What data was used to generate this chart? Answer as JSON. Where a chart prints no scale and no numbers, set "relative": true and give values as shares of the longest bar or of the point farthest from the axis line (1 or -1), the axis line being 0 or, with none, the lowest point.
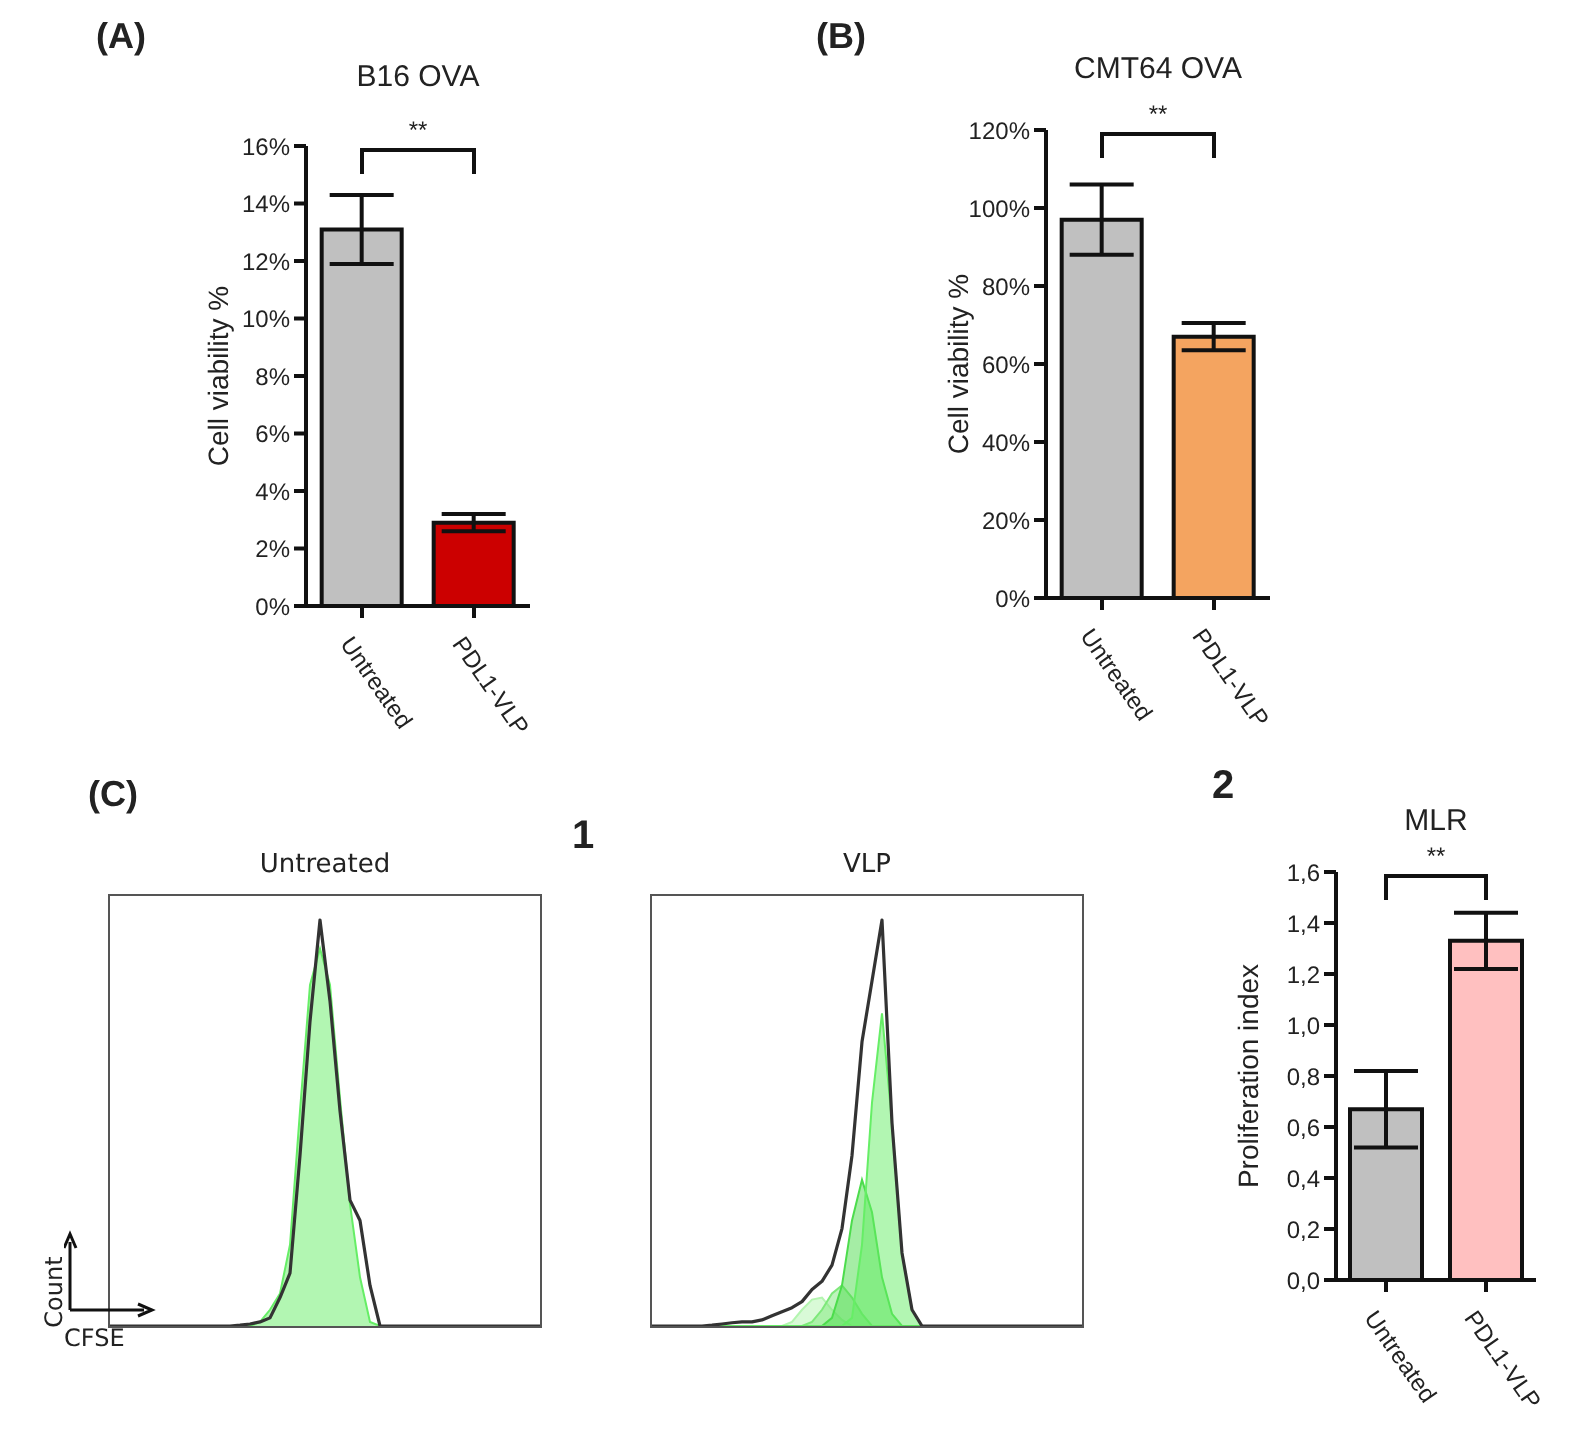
{
  "chart_data": [
    {
      "type": "bar",
      "title": "B16 OVA",
      "ylabel": "Cell viability %",
      "annotations": [
        "(A)",
        "**"
      ],
      "categories": [
        "Untreated",
        "PDL1-VLP"
      ],
      "values": [
        13.1,
        2.9
      ],
      "errors": [
        1.2,
        0.3
      ],
      "colors": [
        "#c0c0c0",
        "#cc0000"
      ],
      "ylim": [
        0,
        16
      ],
      "yticks": [
        {
          "value": 0,
          "label": "0%"
        },
        {
          "value": 2,
          "label": "2%"
        },
        {
          "value": 4,
          "label": "4%"
        },
        {
          "value": 6,
          "label": "6%"
        },
        {
          "value": 8,
          "label": "8%"
        },
        {
          "value": 10,
          "label": "10%"
        },
        {
          "value": 12,
          "label": "12%"
        },
        {
          "value": 14,
          "label": "14%"
        },
        {
          "value": 16,
          "label": "16%"
        }
      ]
    },
    {
      "type": "bar",
      "title": "CMT64 OVA",
      "ylabel": "Cell viability %",
      "annotations": [
        "(B)",
        "**"
      ],
      "categories": [
        "Untreated",
        "PDL1-VLP"
      ],
      "values": [
        97,
        67
      ],
      "errors": [
        9,
        3.5
      ],
      "colors": [
        "#c0c0c0",
        "#f4a460"
      ],
      "ylim": [
        0,
        120
      ],
      "yticks": [
        {
          "value": 0,
          "label": "0%"
        },
        {
          "value": 20,
          "label": "20%"
        },
        {
          "value": 40,
          "label": "40%"
        },
        {
          "value": 60,
          "label": "60%"
        },
        {
          "value": 80,
          "label": "80%"
        },
        {
          "value": 100,
          "label": "100%"
        },
        {
          "value": 120,
          "label": "120%"
        }
      ]
    },
    {
      "type": "area",
      "title": "Untreated",
      "xlabel": "CFSE",
      "ylabel": "Count",
      "annotations": [
        "(C)",
        "1"
      ],
      "relative": true,
      "tick_labels": false,
      "categories": [
        null,
        null,
        null,
        null,
        null,
        null,
        null,
        null,
        null,
        null,
        null,
        null,
        null,
        null,
        null,
        null,
        null,
        null,
        null,
        null,
        null,
        null,
        null,
        null,
        null,
        null,
        null,
        null,
        null,
        null,
        null,
        null,
        null,
        null,
        null,
        null,
        null,
        null,
        null,
        null,
        null,
        null,
        null,
        null
      ],
      "series": [
        {
          "type": "area",
          "color": "#66ee66",
          "values": [
            0,
            0,
            0,
            0,
            0,
            0,
            0,
            0,
            0,
            0,
            0,
            0,
            0,
            0,
            0,
            0.01,
            0.04,
            0.08,
            0.2,
            0.53,
            0.84,
            0.93,
            0.84,
            0.56,
            0.3,
            0.12,
            0.01,
            0,
            0,
            0,
            0,
            0,
            0,
            0,
            0,
            0,
            0,
            0,
            0,
            0,
            0,
            0,
            0,
            0
          ]
        },
        {
          "type": "line",
          "color": "#333333",
          "values": [
            0,
            0,
            0,
            0,
            0,
            0,
            0,
            0,
            0,
            0,
            0,
            0,
            0,
            0.002,
            0.005,
            0.01,
            0.02,
            0.07,
            0.13,
            0.42,
            0.75,
            1,
            0.8,
            0.53,
            0.31,
            0.26,
            0.1,
            0,
            0,
            0,
            0,
            0,
            0,
            0,
            0,
            0,
            0,
            0,
            0,
            0,
            0,
            0,
            0,
            0
          ]
        }
      ]
    },
    {
      "type": "area",
      "title": "VLP",
      "relative": true,
      "tick_labels": false,
      "categories": [
        null,
        null,
        null,
        null,
        null,
        null,
        null,
        null,
        null,
        null,
        null,
        null,
        null,
        null,
        null,
        null,
        null,
        null,
        null,
        null,
        null,
        null,
        null,
        null,
        null,
        null,
        null,
        null,
        null,
        null,
        null,
        null,
        null,
        null,
        null,
        null,
        null,
        null,
        null,
        null,
        null,
        null,
        null,
        null
      ],
      "series": [
        {
          "type": "area",
          "color": "#b4f5b0",
          "values": [
            0,
            0,
            0,
            0,
            0,
            0,
            0,
            0,
            0,
            0,
            0,
            0,
            0,
            0,
            0.01,
            0.04,
            0.065,
            0.07,
            0.04,
            0.015,
            0,
            0,
            0,
            0,
            0,
            0,
            0,
            0,
            0,
            0,
            0,
            0,
            0,
            0,
            0,
            0,
            0,
            0,
            0,
            0,
            0,
            0,
            0,
            0
          ]
        },
        {
          "type": "area",
          "color": "#7ee87a",
          "values": [
            0,
            0,
            0,
            0,
            0,
            0,
            0,
            0,
            0,
            0,
            0,
            0,
            0,
            0,
            0,
            0,
            0.01,
            0.04,
            0.08,
            0.1,
            0.07,
            0.03,
            0,
            0,
            0,
            0,
            0,
            0,
            0,
            0,
            0,
            0,
            0,
            0,
            0,
            0,
            0,
            0,
            0,
            0,
            0,
            0,
            0,
            0
          ]
        },
        {
          "type": "area",
          "color": "#4cdc4c",
          "values": [
            0,
            0,
            0,
            0,
            0,
            0,
            0,
            0,
            0,
            0,
            0,
            0,
            0,
            0,
            0,
            0,
            0,
            0,
            0.02,
            0.1,
            0.26,
            0.36,
            0.28,
            0.12,
            0.03,
            0,
            0,
            0,
            0,
            0,
            0,
            0,
            0,
            0,
            0,
            0,
            0,
            0,
            0,
            0,
            0,
            0,
            0,
            0
          ]
        },
        {
          "type": "area",
          "color": "#66ee66",
          "values": [
            0,
            0,
            0,
            0,
            0,
            0,
            0,
            0,
            0,
            0,
            0,
            0,
            0,
            0,
            0,
            0,
            0,
            0,
            0,
            0,
            0.02,
            0.2,
            0.55,
            0.77,
            0.5,
            0.18,
            0.04,
            0,
            0,
            0,
            0,
            0,
            0,
            0,
            0,
            0,
            0,
            0,
            0,
            0,
            0,
            0,
            0,
            0
          ]
        },
        {
          "type": "line",
          "color": "#333333",
          "values": [
            0,
            0,
            0,
            0,
            0,
            0,
            0.002,
            0.005,
            0.008,
            0.01,
            0.01,
            0.015,
            0.025,
            0.035,
            0.045,
            0.06,
            0.09,
            0.11,
            0.15,
            0.24,
            0.42,
            0.7,
            0.85,
            1,
            0.5,
            0.18,
            0.04,
            0,
            0,
            0,
            0,
            0,
            0,
            0,
            0,
            0,
            0,
            0,
            0,
            0,
            0,
            0,
            0,
            0
          ]
        }
      ]
    },
    {
      "type": "bar",
      "title": "MLR",
      "ylabel": "Proliferation index",
      "annotations": [
        "2",
        "**"
      ],
      "categories": [
        "Untreated",
        "PDL1-VLP"
      ],
      "values": [
        0.67,
        1.33
      ],
      "errors": [
        0.15,
        0.11
      ],
      "colors": [
        "#c0c0c0",
        "#ffc0c0"
      ],
      "ylim": [
        0,
        1.6
      ],
      "yticks": [
        {
          "value": 0,
          "label": "0,0"
        },
        {
          "value": 0.2,
          "label": "0,2"
        },
        {
          "value": 0.4,
          "label": "0,4"
        },
        {
          "value": 0.6,
          "label": "0,6"
        },
        {
          "value": 0.8,
          "label": "0,8"
        },
        {
          "value": 1,
          "label": "1,0"
        },
        {
          "value": 1.2,
          "label": "1,2"
        },
        {
          "value": 1.4,
          "label": "1,4"
        },
        {
          "value": 1.6,
          "label": "1,6"
        }
      ]
    }
  ]
}
